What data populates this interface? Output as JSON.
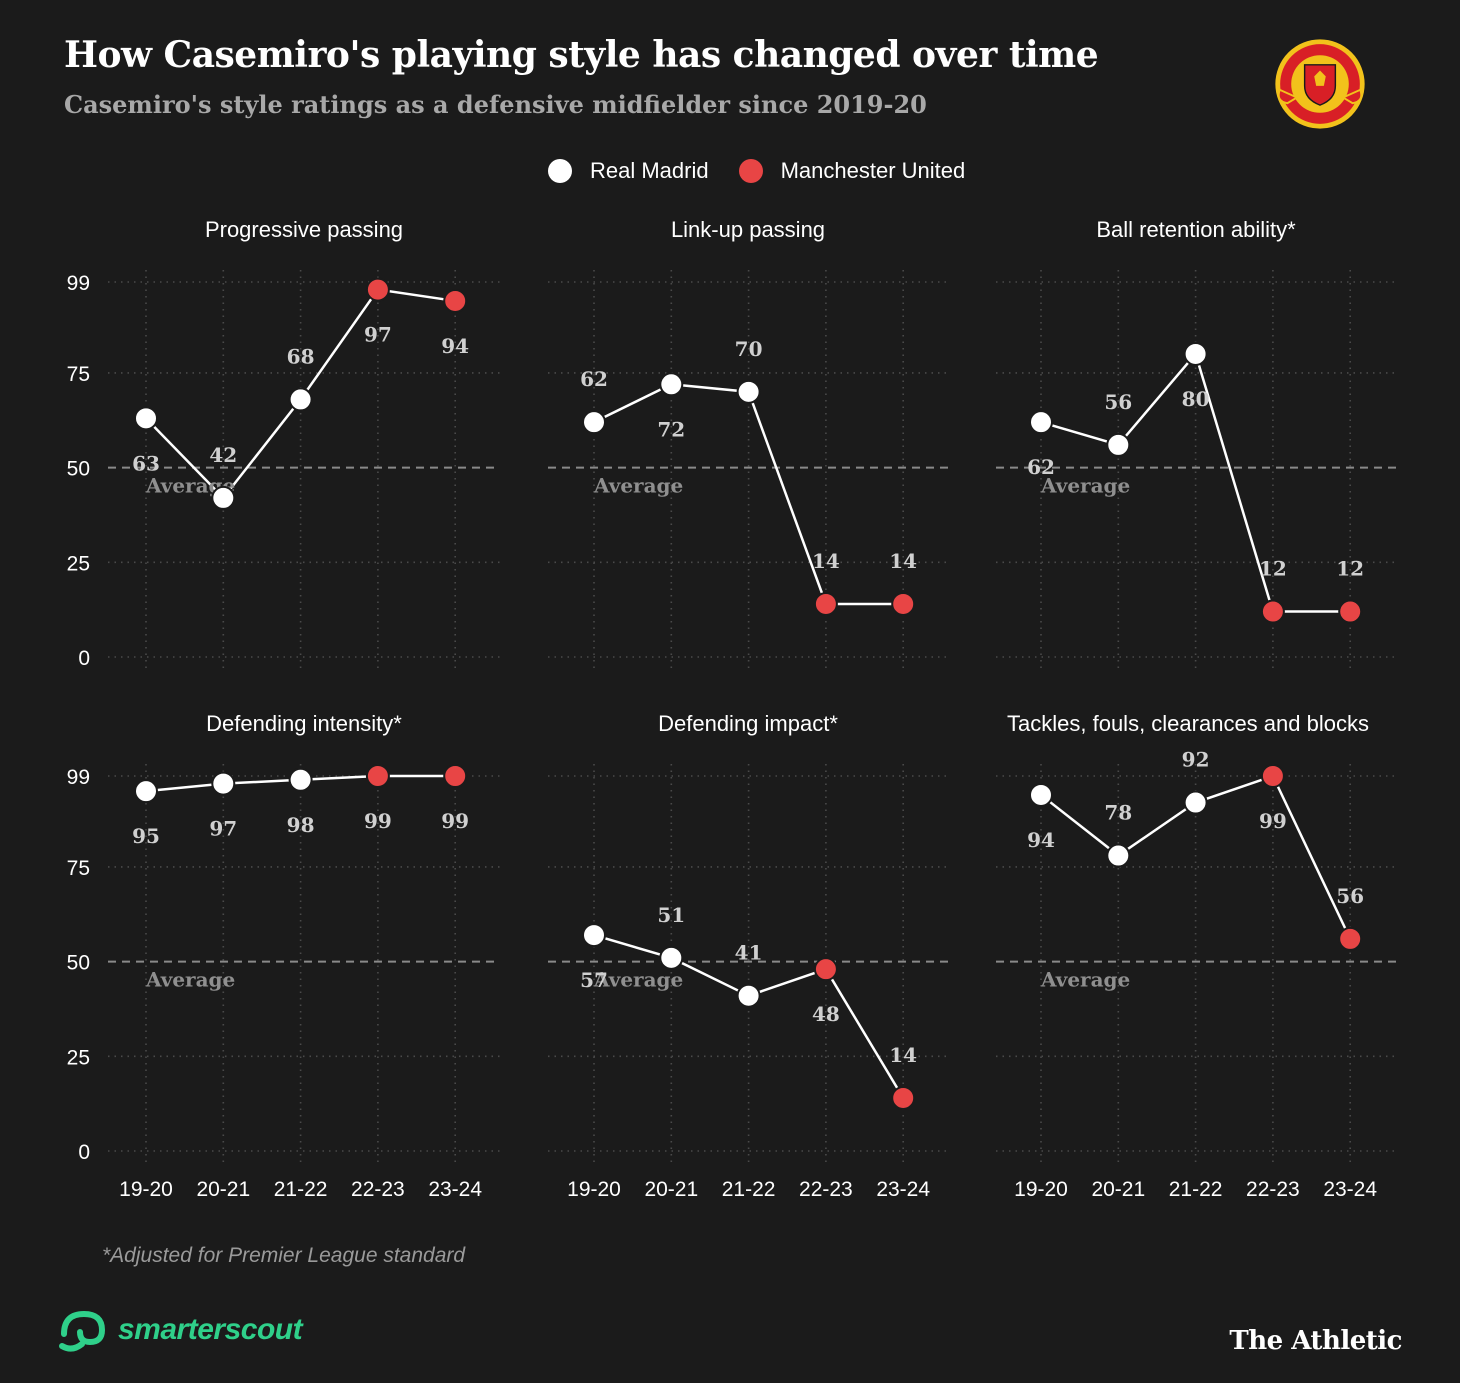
{
  "header": {
    "title": "How Casemiro's playing style has changed over time",
    "subtitle": "Casemiro's style ratings as a defensive midfielder since 2019-20"
  },
  "legend": {
    "items": [
      {
        "label": "Real Madrid",
        "color": "#ffffff"
      },
      {
        "label": "Manchester United",
        "color": "#e84545"
      }
    ]
  },
  "chart_data": [
    {
      "type": "line",
      "title": "Progressive passing",
      "categories": [
        "19-20",
        "20-21",
        "21-22",
        "22-23",
        "23-24"
      ],
      "values": [
        63,
        42,
        68,
        97,
        94
      ],
      "teams": [
        "Real Madrid",
        "Real Madrid",
        "Real Madrid",
        "Manchester United",
        "Manchester United"
      ],
      "yticks": [
        0,
        25,
        50,
        75,
        99
      ],
      "ylim": [
        0,
        99
      ],
      "average": 50,
      "average_label": "Average"
    },
    {
      "type": "line",
      "title": "Link-up passing",
      "categories": [
        "19-20",
        "20-21",
        "21-22",
        "22-23",
        "23-24"
      ],
      "values": [
        62,
        72,
        70,
        14,
        14
      ],
      "teams": [
        "Real Madrid",
        "Real Madrid",
        "Real Madrid",
        "Manchester United",
        "Manchester United"
      ],
      "ylim": [
        0,
        99
      ],
      "average": 50,
      "average_label": "Average"
    },
    {
      "type": "line",
      "title": "Ball retention ability*",
      "categories": [
        "19-20",
        "20-21",
        "21-22",
        "22-23",
        "23-24"
      ],
      "values": [
        62,
        56,
        80,
        12,
        12
      ],
      "teams": [
        "Real Madrid",
        "Real Madrid",
        "Real Madrid",
        "Manchester United",
        "Manchester United"
      ],
      "ylim": [
        0,
        99
      ],
      "average": 50,
      "average_label": "Average"
    },
    {
      "type": "line",
      "title": "Defending intensity*",
      "categories": [
        "19-20",
        "20-21",
        "21-22",
        "22-23",
        "23-24"
      ],
      "values": [
        95,
        97,
        98,
        99,
        99
      ],
      "teams": [
        "Real Madrid",
        "Real Madrid",
        "Real Madrid",
        "Manchester United",
        "Manchester United"
      ],
      "yticks": [
        0,
        25,
        50,
        75,
        99
      ],
      "ylim": [
        0,
        99
      ],
      "average": 50,
      "average_label": "Average"
    },
    {
      "type": "line",
      "title": "Defending impact*",
      "categories": [
        "19-20",
        "20-21",
        "21-22",
        "22-23",
        "23-24"
      ],
      "values": [
        57,
        51,
        41,
        48,
        14
      ],
      "teams": [
        "Real Madrid",
        "Real Madrid",
        "Real Madrid",
        "Manchester United",
        "Manchester United"
      ],
      "ylim": [
        0,
        99
      ],
      "average": 50,
      "average_label": "Average"
    },
    {
      "type": "line",
      "title": "Tackles, fouls, clearances and blocks",
      "categories": [
        "19-20",
        "20-21",
        "21-22",
        "22-23",
        "23-24"
      ],
      "values": [
        94,
        78,
        92,
        99,
        56
      ],
      "teams": [
        "Real Madrid",
        "Real Madrid",
        "Real Madrid",
        "Manchester United",
        "Manchester United"
      ],
      "ylim": [
        0,
        99
      ],
      "average": 50,
      "average_label": "Average"
    }
  ],
  "footer": {
    "footnote": "*Adjusted for Premier League standard",
    "source_logo": "smarterscout",
    "publisher": "The Athletic"
  },
  "colors": {
    "background": "#1b1b1b",
    "real_madrid": "#ffffff",
    "manchester_united": "#e84545",
    "brand_green": "#2fd08a"
  },
  "icons": {
    "crest": "manchester-united-crest-icon",
    "source": "smarterscout-logo-icon"
  }
}
